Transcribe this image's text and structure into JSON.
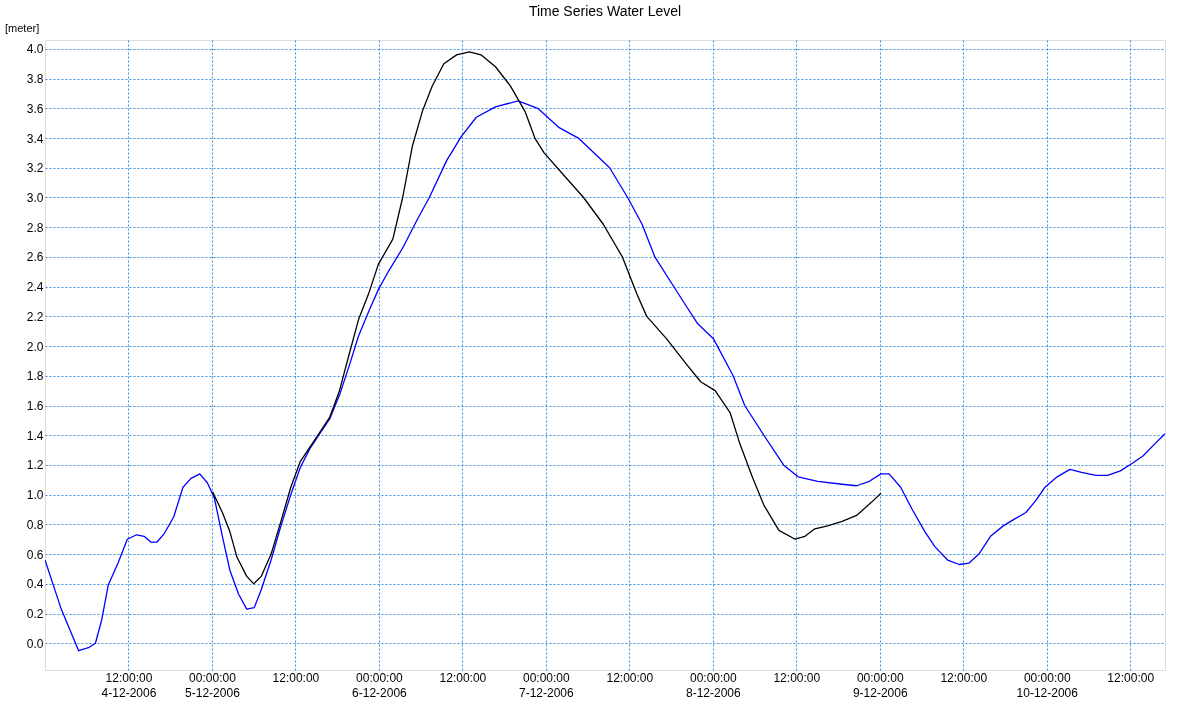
{
  "chart_data": {
    "type": "line",
    "title": "Time Series Water Level",
    "ylabel": "[meter]",
    "xlim": [
      "2006-12-04T00:00",
      "2006-12-10T17:00"
    ],
    "xticks": [
      {
        "value": "2006-12-04T12:00",
        "label": "12:00:00\n4-12-2006"
      },
      {
        "value": "2006-12-05T00:00",
        "label": "00:00:00\n5-12-2006"
      },
      {
        "value": "2006-12-05T12:00",
        "label": "12:00:00"
      },
      {
        "value": "2006-12-06T00:00",
        "label": "00:00:00\n6-12-2006"
      },
      {
        "value": "2006-12-06T12:00",
        "label": "12:00:00"
      },
      {
        "value": "2006-12-07T00:00",
        "label": "00:00:00\n7-12-2006"
      },
      {
        "value": "2006-12-07T12:00",
        "label": "12:00:00"
      },
      {
        "value": "2006-12-08T00:00",
        "label": "00:00:00\n8-12-2006"
      },
      {
        "value": "2006-12-08T12:00",
        "label": "12:00:00"
      },
      {
        "value": "2006-12-09T00:00",
        "label": "00:00:00\n9-12-2006"
      },
      {
        "value": "2006-12-09T12:00",
        "label": "12:00:00"
      },
      {
        "value": "2006-12-10T00:00",
        "label": "00:00:00\n10-12-2006"
      },
      {
        "value": "2006-12-10T12:00",
        "label": "12:00:00"
      }
    ],
    "ylim": [
      -0.18,
      4.06
    ],
    "yticks": [
      {
        "value": 0,
        "label": "0.0"
      },
      0.2,
      0.4,
      0.6,
      0.8,
      {
        "value": 1,
        "label": "1.0"
      },
      1.2,
      1.4,
      1.6,
      1.8,
      {
        "value": 2,
        "label": "2.0"
      },
      2.2,
      2.4,
      2.6,
      2.8,
      {
        "value": 3,
        "label": "3.0"
      },
      3.2,
      3.4,
      3.6,
      3.8,
      {
        "value": 4,
        "label": "4.0"
      }
    ],
    "grid": true,
    "series": [
      {
        "color": "#0000ff",
        "x": [
          "2006-12-04T00:00",
          "2006-12-04T02:20",
          "2006-12-04T04:50",
          "2006-12-04T06:15",
          "2006-12-04T07:15",
          "2006-12-04T08:10",
          "2006-12-04T09:05",
          "2006-12-04T10:30",
          "2006-12-04T11:50",
          "2006-12-04T13:10",
          "2006-12-04T14:15",
          "2006-12-04T15:15",
          "2006-12-04T16:05",
          "2006-12-04T17:10",
          "2006-12-04T18:30",
          "2006-12-04T19:50",
          "2006-12-04T21:00",
          "2006-12-04T22:15",
          "2006-12-04T23:20",
          "2006-12-05T00:20",
          "2006-12-05T01:30",
          "2006-12-05T02:35",
          "2006-12-05T03:50",
          "2006-12-05T05:00",
          "2006-12-05T06:05",
          "2006-12-05T07:05",
          "2006-12-05T08:30",
          "2006-12-05T09:55",
          "2006-12-05T11:20",
          "2006-12-05T12:40",
          "2006-12-05T14:05",
          "2006-12-05T15:30",
          "2006-12-05T16:55",
          "2006-12-05T18:20",
          "2006-12-05T19:45",
          "2006-12-05T21:05",
          "2006-12-05T22:30",
          "2006-12-05T23:55",
          "2006-12-06T01:20",
          "2006-12-06T03:25",
          "2006-12-06T05:30",
          "2006-12-06T07:15",
          "2006-12-06T09:45",
          "2006-12-06T11:50",
          "2006-12-06T14:00",
          "2006-12-06T16:45",
          "2006-12-06T20:00",
          "2006-12-06T22:50",
          "2006-12-07T01:55",
          "2006-12-07T04:40",
          "2006-12-07T09:10",
          "2006-12-07T11:45",
          "2006-12-07T13:50",
          "2006-12-07T15:40",
          "2006-12-07T19:45",
          "2006-12-07T21:50",
          "2006-12-08T00:05",
          "2006-12-08T02:55",
          "2006-12-08T04:35",
          "2006-12-08T07:20",
          "2006-12-08T10:10",
          "2006-12-08T12:15",
          "2006-12-08T15:05",
          "2006-12-08T18:35",
          "2006-12-08T20:40",
          "2006-12-08T22:30",
          "2006-12-09T00:10",
          "2006-12-09T01:20",
          "2006-12-09T03:00",
          "2006-12-09T04:40",
          "2006-12-09T06:30",
          "2006-12-09T07:55",
          "2006-12-09T09:45",
          "2006-12-09T11:25",
          "2006-12-09T12:50",
          "2006-12-09T14:15",
          "2006-12-09T15:55",
          "2006-12-09T17:45",
          "2006-12-09T19:10",
          "2006-12-09T21:00",
          "2006-12-09T22:25",
          "2006-12-09T23:45",
          "2006-12-10T01:30",
          "2006-12-10T03:20",
          "2006-12-10T05:00",
          "2006-12-10T07:05",
          "2006-12-10T08:45",
          "2006-12-10T10:35",
          "2006-12-10T12:15",
          "2006-12-10T13:50",
          "2006-12-10T15:30",
          "2006-12-10T17:00"
        ],
        "values": [
          0.56,
          0.23,
          -0.05,
          -0.03,
          0.0,
          0.16,
          0.39,
          0.54,
          0.7,
          0.73,
          0.72,
          0.68,
          0.68,
          0.74,
          0.85,
          1.05,
          1.11,
          1.14,
          1.08,
          0.98,
          0.72,
          0.49,
          0.33,
          0.23,
          0.24,
          0.36,
          0.56,
          0.79,
          1.0,
          1.18,
          1.31,
          1.41,
          1.51,
          1.67,
          1.87,
          2.07,
          2.23,
          2.38,
          2.5,
          2.66,
          2.85,
          3.0,
          3.25,
          3.41,
          3.54,
          3.61,
          3.65,
          3.6,
          3.47,
          3.4,
          3.2,
          3.0,
          2.82,
          2.6,
          2.3,
          2.15,
          2.05,
          1.8,
          1.6,
          1.4,
          1.2,
          1.12,
          1.09,
          1.07,
          1.06,
          1.09,
          1.14,
          1.14,
          1.05,
          0.9,
          0.75,
          0.65,
          0.56,
          0.53,
          0.54,
          0.6,
          0.72,
          0.79,
          0.83,
          0.88,
          0.96,
          1.05,
          1.12,
          1.17,
          1.15,
          1.13,
          1.13,
          1.16,
          1.21,
          1.26,
          1.34,
          1.41
        ]
      },
      {
        "color": "#000000",
        "x": [
          "2006-12-05T00:05",
          "2006-12-05T01:30",
          "2006-12-05T02:35",
          "2006-12-05T03:35",
          "2006-12-05T05:00",
          "2006-12-05T06:00",
          "2006-12-05T07:05",
          "2006-12-05T08:30",
          "2006-12-05T09:55",
          "2006-12-05T11:20",
          "2006-12-05T12:40",
          "2006-12-05T14:05",
          "2006-12-05T15:30",
          "2006-12-05T16:55",
          "2006-12-05T18:20",
          "2006-12-05T19:45",
          "2006-12-05T21:05",
          "2006-12-05T22:30",
          "2006-12-05T23:55",
          "2006-12-06T02:00",
          "2006-12-06T03:25",
          "2006-12-06T04:50",
          "2006-12-06T06:15",
          "2006-12-06T07:40",
          "2006-12-06T09:20",
          "2006-12-06T11:10",
          "2006-12-06T13:00",
          "2006-12-06T14:40",
          "2006-12-06T16:45",
          "2006-12-06T18:55",
          "2006-12-06T21:00",
          "2006-12-06T22:25",
          "2006-12-06T23:45",
          "2006-12-07T02:35",
          "2006-12-07T05:25",
          "2006-12-07T08:15",
          "2006-12-07T11:00",
          "2006-12-07T13:05",
          "2006-12-07T14:30",
          "2006-12-07T17:20",
          "2006-12-07T20:10",
          "2006-12-07T22:15",
          "2006-12-08T00:20",
          "2006-12-08T02:30",
          "2006-12-08T03:50",
          "2006-12-08T05:40",
          "2006-12-08T07:20",
          "2006-12-08T09:30",
          "2006-12-08T11:50",
          "2006-12-08T13:15",
          "2006-12-08T14:40",
          "2006-12-08T16:30",
          "2006-12-08T18:35",
          "2006-12-08T20:40",
          "2006-12-08T22:50",
          "2006-12-09T00:10"
        ],
        "values": [
          1.02,
          0.88,
          0.75,
          0.58,
          0.45,
          0.4,
          0.45,
          0.6,
          0.82,
          1.05,
          1.22,
          1.32,
          1.42,
          1.52,
          1.7,
          1.95,
          2.18,
          2.35,
          2.55,
          2.72,
          3.0,
          3.35,
          3.58,
          3.75,
          3.9,
          3.96,
          3.98,
          3.96,
          3.88,
          3.75,
          3.58,
          3.4,
          3.3,
          3.15,
          3.0,
          2.82,
          2.6,
          2.35,
          2.2,
          2.05,
          1.88,
          1.76,
          1.7,
          1.55,
          1.35,
          1.12,
          0.93,
          0.76,
          0.7,
          0.72,
          0.77,
          0.79,
          0.82,
          0.86,
          0.95,
          1.01
        ]
      }
    ]
  }
}
